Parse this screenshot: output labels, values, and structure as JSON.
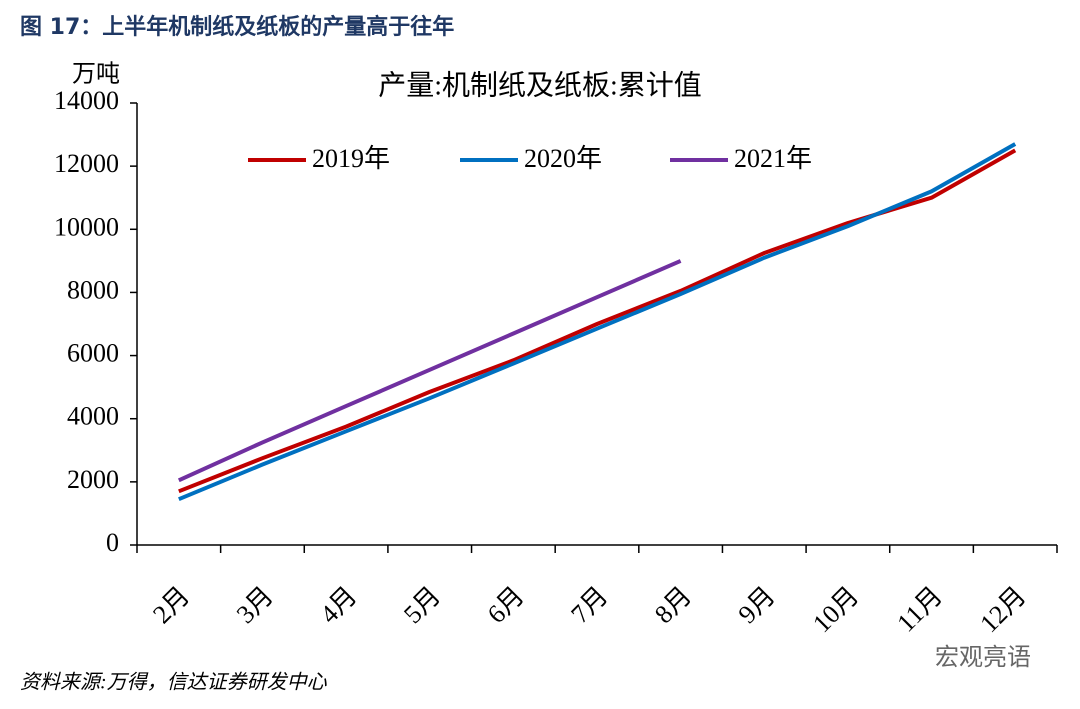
{
  "header": {
    "title": "图 17：上半年机制纸及纸板的产量高于往年"
  },
  "chart_data": {
    "type": "line",
    "title": "产量:机制纸及纸板:累计值",
    "y_unit": "万吨",
    "categories": [
      "2月",
      "3月",
      "4月",
      "5月",
      "6月",
      "7月",
      "8月",
      "9月",
      "10月",
      "11月",
      "12月"
    ],
    "series": [
      {
        "name": "2019年",
        "color": "#c00000",
        "values": [
          1700,
          2750,
          3750,
          4850,
          5850,
          7000,
          8050,
          9250,
          10200,
          11000,
          12500
        ]
      },
      {
        "name": "2020年",
        "color": "#0070c0",
        "values": [
          1450,
          2550,
          3600,
          4650,
          5750,
          6850,
          7950,
          9100,
          10100,
          11200,
          12700
        ]
      },
      {
        "name": "2021年",
        "color": "#7030a0",
        "values": [
          2050,
          3250,
          4400,
          5550,
          6700,
          7850,
          9000,
          null,
          null,
          null,
          null
        ]
      }
    ],
    "ylim": [
      0,
      14000
    ],
    "yticks": [
      0,
      2000,
      4000,
      6000,
      8000,
      10000,
      12000,
      14000
    ],
    "grid": false
  },
  "source": "资料来源:万得，信达证券研发中心",
  "watermark": "宏观亮语"
}
